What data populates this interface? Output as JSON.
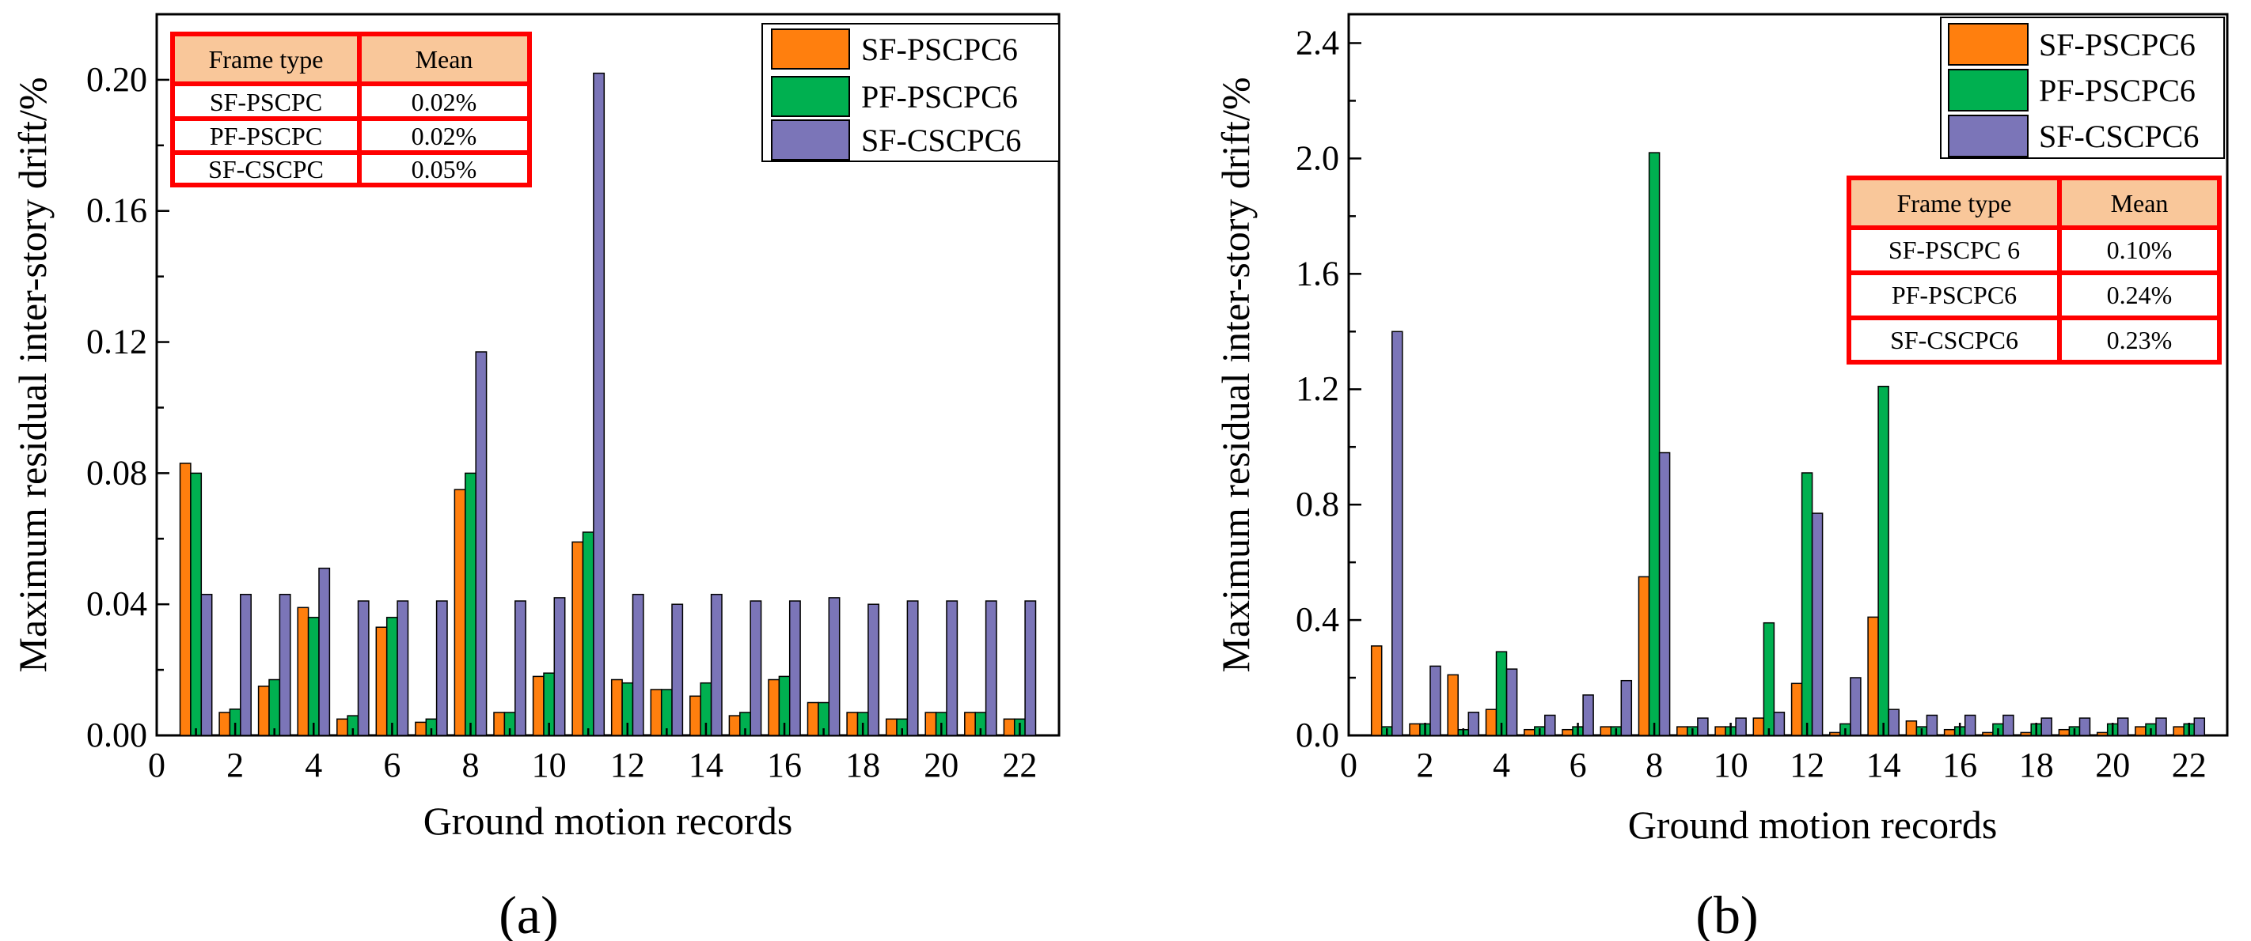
{
  "chart_data": [
    {
      "panel_label": "(a)",
      "type": "bar",
      "xlabel": "Ground motion records",
      "ylabel": "Maximum  residual inter-story drift/%",
      "xlim": [
        0,
        23
      ],
      "ylim": [
        0,
        0.22
      ],
      "xticks": [
        "0",
        "2",
        "4",
        "6",
        "8",
        "10",
        "12",
        "14",
        "16",
        "18",
        "20",
        "22"
      ],
      "yticks": [
        "0.00",
        "0.04",
        "0.08",
        "0.12",
        "0.16",
        "0.20"
      ],
      "categories": [
        1,
        2,
        3,
        4,
        5,
        6,
        7,
        8,
        9,
        10,
        11,
        12,
        13,
        14,
        15,
        16,
        17,
        18,
        19,
        20,
        21,
        22
      ],
      "series": [
        {
          "name": "SF-PSCPC6",
          "color": "#ff7f0e",
          "values": [
            0.083,
            0.007,
            0.015,
            0.039,
            0.005,
            0.033,
            0.004,
            0.075,
            0.007,
            0.018,
            0.059,
            0.017,
            0.014,
            0.012,
            0.006,
            0.017,
            0.01,
            0.007,
            0.005,
            0.007,
            0.007,
            0.005
          ]
        },
        {
          "name": "PF-PSCPC6",
          "color": "#00b050",
          "values": [
            0.08,
            0.008,
            0.017,
            0.036,
            0.006,
            0.036,
            0.005,
            0.08,
            0.007,
            0.019,
            0.062,
            0.016,
            0.014,
            0.016,
            0.007,
            0.018,
            0.01,
            0.007,
            0.005,
            0.007,
            0.007,
            0.005
          ]
        },
        {
          "name": "SF-CSCPC6",
          "color": "#7b75b8",
          "values": [
            0.043,
            0.043,
            0.043,
            0.051,
            0.041,
            0.041,
            0.041,
            0.117,
            0.041,
            0.042,
            0.202,
            0.043,
            0.04,
            0.043,
            0.041,
            0.041,
            0.042,
            0.04,
            0.041,
            0.041,
            0.041,
            0.041
          ]
        }
      ],
      "table": {
        "headers": [
          "Frame type",
          "Mean"
        ],
        "rows": [
          [
            "SF-PSCPC",
            "0.02%"
          ],
          [
            "PF-PSCPC",
            "0.02%"
          ],
          [
            "SF-CSCPC",
            "0.05%"
          ]
        ]
      }
    },
    {
      "panel_label": "(b)",
      "type": "bar",
      "xlabel": "Ground motion records",
      "ylabel": "Maximum  residual inter-story drift/%",
      "xlim": [
        0,
        23
      ],
      "ylim": [
        0,
        2.5
      ],
      "xticks": [
        "0",
        "2",
        "4",
        "6",
        "8",
        "10",
        "12",
        "14",
        "16",
        "18",
        "20",
        "22"
      ],
      "yticks": [
        "0.0",
        "0.4",
        "0.8",
        "1.2",
        "1.6",
        "2.0",
        "2.4"
      ],
      "categories": [
        1,
        2,
        3,
        4,
        5,
        6,
        7,
        8,
        9,
        10,
        11,
        12,
        13,
        14,
        15,
        16,
        17,
        18,
        19,
        20,
        21,
        22
      ],
      "series": [
        {
          "name": "SF-PSCPC6",
          "color": "#ff7f0e",
          "values": [
            0.31,
            0.04,
            0.21,
            0.09,
            0.02,
            0.02,
            0.03,
            0.55,
            0.03,
            0.03,
            0.06,
            0.18,
            0.01,
            0.41,
            0.05,
            0.02,
            0.01,
            0.01,
            0.02,
            0.01,
            0.03,
            0.03
          ]
        },
        {
          "name": "PF-PSCPC6",
          "color": "#00b050",
          "values": [
            0.03,
            0.04,
            0.02,
            0.29,
            0.03,
            0.03,
            0.03,
            2.02,
            0.03,
            0.03,
            0.39,
            0.91,
            0.04,
            1.21,
            0.03,
            0.03,
            0.04,
            0.04,
            0.03,
            0.04,
            0.04,
            0.04
          ]
        },
        {
          "name": "SF-CSCPC6",
          "color": "#7b75b8",
          "values": [
            1.4,
            0.24,
            0.08,
            0.23,
            0.07,
            0.14,
            0.19,
            0.98,
            0.06,
            0.06,
            0.08,
            0.77,
            0.2,
            0.09,
            0.07,
            0.07,
            0.07,
            0.06,
            0.06,
            0.06,
            0.06,
            0.06
          ]
        }
      ],
      "table": {
        "headers": [
          "Frame type",
          "Mean"
        ],
        "rows": [
          [
            "SF-PSCPC 6",
            "0.10%"
          ],
          [
            "PF-PSCPC6",
            "0.24%"
          ],
          [
            "SF-CSCPC6",
            "0.23%"
          ]
        ]
      }
    }
  ]
}
